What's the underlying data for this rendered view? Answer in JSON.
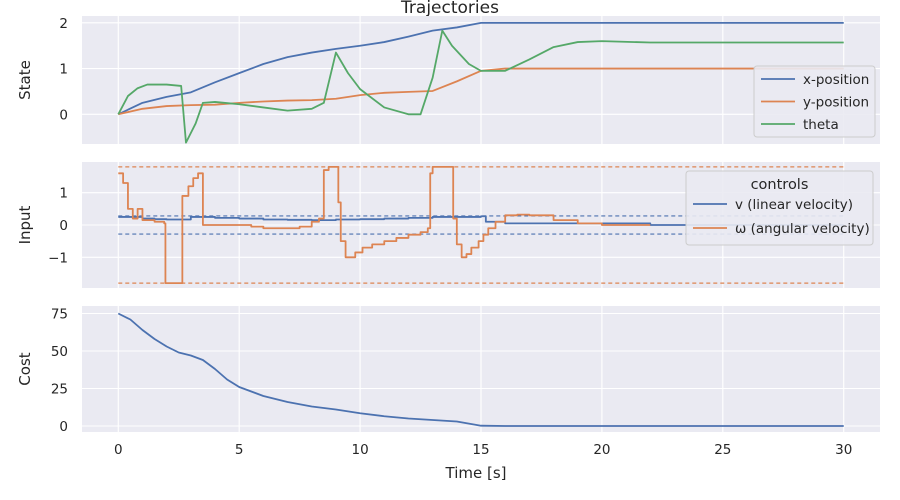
{
  "figure": {
    "title": "Trajectories",
    "xlabel": "Time [s]",
    "background": "#ffffff",
    "panel_background": "#eaeaf2",
    "grid_color": "#ffffff",
    "text_color": "#262626",
    "palette": {
      "blue": "#4c72b0",
      "orange": "#dd8452",
      "green": "#55a868"
    }
  },
  "chart_data": [
    {
      "type": "line",
      "title": "Trajectories",
      "xlabel": "",
      "ylabel": "State",
      "xlim": [
        -1.5,
        31.5
      ],
      "ylim": [
        -0.65,
        2.15
      ],
      "xticks": [
        0,
        5,
        10,
        15,
        20,
        25,
        30
      ],
      "show_xticklabels": false,
      "yticks": [
        0,
        1,
        2
      ],
      "grid": true,
      "legend": {
        "placement": "lower-right",
        "title": "",
        "entries": [
          "x-position",
          "y-position",
          "theta"
        ]
      },
      "series": [
        {
          "name": "x-position",
          "color": "#4c72b0",
          "step": false,
          "points": [
            [
              0,
              0
            ],
            [
              1,
              0.25
            ],
            [
              2,
              0.38
            ],
            [
              3,
              0.48
            ],
            [
              4,
              0.7
            ],
            [
              5,
              0.9
            ],
            [
              6,
              1.1
            ],
            [
              7,
              1.25
            ],
            [
              8,
              1.35
            ],
            [
              9,
              1.43
            ],
            [
              10,
              1.5
            ],
            [
              11,
              1.58
            ],
            [
              12,
              1.7
            ],
            [
              13,
              1.83
            ],
            [
              14,
              1.9
            ],
            [
              15,
              2.0
            ],
            [
              20,
              2.0
            ],
            [
              25,
              2.0
            ],
            [
              30,
              2.0
            ]
          ]
        },
        {
          "name": "y-position",
          "color": "#dd8452",
          "step": false,
          "points": [
            [
              0,
              0
            ],
            [
              1,
              0.12
            ],
            [
              2,
              0.18
            ],
            [
              3,
              0.2
            ],
            [
              4,
              0.21
            ],
            [
              5,
              0.25
            ],
            [
              6,
              0.28
            ],
            [
              7,
              0.3
            ],
            [
              8,
              0.31
            ],
            [
              9,
              0.34
            ],
            [
              10,
              0.42
            ],
            [
              11,
              0.47
            ],
            [
              12,
              0.49
            ],
            [
              13,
              0.51
            ],
            [
              14,
              0.72
            ],
            [
              15,
              0.95
            ],
            [
              16,
              1.0
            ],
            [
              20,
              1.0
            ],
            [
              25,
              1.0
            ],
            [
              30,
              1.0
            ]
          ]
        },
        {
          "name": "theta",
          "color": "#55a868",
          "step": false,
          "points": [
            [
              0,
              0
            ],
            [
              0.4,
              0.4
            ],
            [
              0.8,
              0.57
            ],
            [
              1.2,
              0.65
            ],
            [
              2.0,
              0.65
            ],
            [
              2.6,
              0.62
            ],
            [
              2.8,
              -0.62
            ],
            [
              3.2,
              -0.2
            ],
            [
              3.5,
              0.25
            ],
            [
              4,
              0.27
            ],
            [
              5,
              0.22
            ],
            [
              6,
              0.15
            ],
            [
              7,
              0.08
            ],
            [
              8,
              0.12
            ],
            [
              8.5,
              0.25
            ],
            [
              9,
              1.35
            ],
            [
              9.5,
              0.9
            ],
            [
              10,
              0.55
            ],
            [
              11,
              0.15
            ],
            [
              12,
              0.0
            ],
            [
              12.5,
              0.0
            ],
            [
              13,
              0.8
            ],
            [
              13.4,
              1.83
            ],
            [
              13.8,
              1.5
            ],
            [
              14.5,
              1.1
            ],
            [
              15,
              0.95
            ],
            [
              16,
              0.95
            ],
            [
              17,
              1.2
            ],
            [
              18,
              1.47
            ],
            [
              19,
              1.58
            ],
            [
              20,
              1.6
            ],
            [
              22,
              1.57
            ],
            [
              25,
              1.57
            ],
            [
              30,
              1.57
            ]
          ]
        }
      ]
    },
    {
      "type": "line",
      "title": "",
      "xlabel": "",
      "ylabel": "Input",
      "xlim": [
        -1.5,
        31.5
      ],
      "ylim": [
        -1.95,
        1.95
      ],
      "xticks": [
        0,
        5,
        10,
        15,
        20,
        25,
        30
      ],
      "show_xticklabels": false,
      "yticks": [
        -1,
        0,
        1
      ],
      "grid": true,
      "legend": {
        "placement": "upper-right",
        "title": "controls",
        "entries": [
          "v (linear velocity)",
          "ω (angular velocity)"
        ]
      },
      "series": [
        {
          "name": "v (linear velocity)",
          "color": "#4c72b0",
          "step": true,
          "points": [
            [
              0,
              0.25
            ],
            [
              1,
              0.2
            ],
            [
              1.5,
              0.18
            ],
            [
              2,
              0.17
            ],
            [
              3,
              0.25
            ],
            [
              4,
              0.22
            ],
            [
              5,
              0.2
            ],
            [
              6,
              0.17
            ],
            [
              7,
              0.16
            ],
            [
              8,
              0.15
            ],
            [
              9,
              0.17
            ],
            [
              10,
              0.18
            ],
            [
              11,
              0.2
            ],
            [
              12,
              0.22
            ],
            [
              13,
              0.25
            ],
            [
              15,
              0.27
            ],
            [
              15.2,
              0.1
            ],
            [
              16,
              0.05
            ],
            [
              17,
              0.05
            ],
            [
              22,
              0.0
            ],
            [
              30,
              0.0
            ]
          ]
        },
        {
          "name": "ω (angular velocity)",
          "color": "#dd8452",
          "step": true,
          "points": [
            [
              0,
              1.6
            ],
            [
              0.2,
              1.3
            ],
            [
              0.4,
              0.5
            ],
            [
              0.6,
              0.2
            ],
            [
              0.8,
              0.5
            ],
            [
              1.0,
              0.15
            ],
            [
              1.5,
              0.1
            ],
            [
              1.9,
              0.05
            ],
            [
              1.95,
              -1.8
            ],
            [
              2.6,
              -1.8
            ],
            [
              2.65,
              0.9
            ],
            [
              2.9,
              1.2
            ],
            [
              3.1,
              1.45
            ],
            [
              3.3,
              1.6
            ],
            [
              3.5,
              0.0
            ],
            [
              5,
              0.0
            ],
            [
              5.5,
              -0.05
            ],
            [
              6,
              -0.1
            ],
            [
              7,
              -0.1
            ],
            [
              7.5,
              -0.05
            ],
            [
              8,
              0.1
            ],
            [
              8.3,
              0.2
            ],
            [
              8.5,
              1.7
            ],
            [
              8.7,
              1.8
            ],
            [
              9.0,
              1.8
            ],
            [
              9.1,
              0.7
            ],
            [
              9.2,
              -0.5
            ],
            [
              9.4,
              -1.0
            ],
            [
              9.6,
              -1.0
            ],
            [
              9.8,
              -0.85
            ],
            [
              10.1,
              -0.7
            ],
            [
              10.5,
              -0.6
            ],
            [
              11,
              -0.5
            ],
            [
              11.5,
              -0.4
            ],
            [
              12,
              -0.3
            ],
            [
              12.5,
              -0.22
            ],
            [
              12.8,
              -0.1
            ],
            [
              12.9,
              1.6
            ],
            [
              13,
              1.8
            ],
            [
              13.8,
              1.8
            ],
            [
              13.85,
              0.2
            ],
            [
              14,
              -0.6
            ],
            [
              14.2,
              -1.0
            ],
            [
              14.4,
              -0.9
            ],
            [
              14.6,
              -0.7
            ],
            [
              14.9,
              -0.5
            ],
            [
              15.1,
              -0.3
            ],
            [
              15.3,
              -0.1
            ],
            [
              15.6,
              0.1
            ],
            [
              16,
              0.3
            ],
            [
              16.5,
              0.32
            ],
            [
              17,
              0.3
            ],
            [
              18,
              0.15
            ],
            [
              19,
              0.05
            ],
            [
              20,
              0.0
            ],
            [
              22,
              0.0
            ]
          ]
        }
      ],
      "bounds": [
        {
          "name": "",
          "color": "#4c72b0",
          "values": [
            0.28,
            -0.28
          ],
          "style": "dashed"
        },
        {
          "name": "",
          "color": "#dd8452",
          "values": [
            1.8,
            -1.8
          ],
          "style": "dashed"
        }
      ]
    },
    {
      "type": "line",
      "title": "",
      "xlabel": "Time [s]",
      "ylabel": "Cost",
      "xlim": [
        -1.5,
        31.5
      ],
      "ylim": [
        -4,
        80
      ],
      "xticks": [
        0,
        5,
        10,
        15,
        20,
        25,
        30
      ],
      "show_xticklabels": true,
      "yticks": [
        0,
        25,
        50,
        75
      ],
      "grid": true,
      "legend": null,
      "series": [
        {
          "name": "",
          "color": "#4c72b0",
          "step": false,
          "points": [
            [
              0,
              75
            ],
            [
              0.5,
              71
            ],
            [
              1,
              64
            ],
            [
              1.5,
              58
            ],
            [
              2,
              53
            ],
            [
              2.5,
              49
            ],
            [
              3,
              47
            ],
            [
              3.5,
              44
            ],
            [
              4,
              38
            ],
            [
              4.5,
              31
            ],
            [
              5,
              26
            ],
            [
              6,
              20
            ],
            [
              7,
              16
            ],
            [
              8,
              13
            ],
            [
              9,
              11
            ],
            [
              10,
              8.5
            ],
            [
              11,
              6.5
            ],
            [
              12,
              5
            ],
            [
              13,
              4
            ],
            [
              14,
              3
            ],
            [
              15,
              0.2
            ],
            [
              16,
              0
            ],
            [
              20,
              0
            ],
            [
              25,
              0
            ],
            [
              30,
              0
            ]
          ]
        }
      ]
    }
  ]
}
